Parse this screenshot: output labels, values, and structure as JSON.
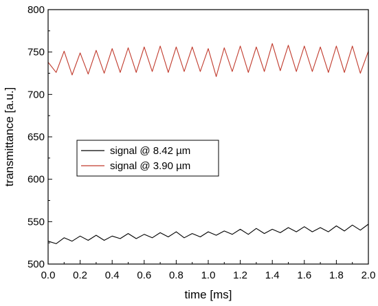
{
  "chart_data": {
    "type": "line",
    "xlabel": "time [ms]",
    "ylabel": "transmittance [a.u.]",
    "xlim": [
      0.0,
      2.0
    ],
    "ylim": [
      500,
      800
    ],
    "x_ticks": [
      "0.0",
      "0.2",
      "0.4",
      "0.6",
      "0.8",
      "1.0",
      "1.2",
      "1.4",
      "1.6",
      "1.8",
      "2.0"
    ],
    "y_ticks": [
      "500",
      "550",
      "600",
      "650",
      "700",
      "750",
      "800"
    ],
    "legend_position": "middle-left",
    "grid": false,
    "series": [
      {
        "name": "signal @ 8.42 µm",
        "color": "#000000",
        "x": [
          0.0,
          0.05,
          0.1,
          0.15,
          0.2,
          0.25,
          0.3,
          0.35,
          0.4,
          0.45,
          0.5,
          0.55,
          0.6,
          0.65,
          0.7,
          0.75,
          0.8,
          0.85,
          0.9,
          0.95,
          1.0,
          1.05,
          1.1,
          1.15,
          1.2,
          1.25,
          1.3,
          1.35,
          1.4,
          1.45,
          1.5,
          1.55,
          1.6,
          1.65,
          1.7,
          1.75,
          1.8,
          1.85,
          1.9,
          1.95,
          2.0
        ],
        "y": [
          527,
          524,
          531,
          527,
          533,
          528,
          534,
          528,
          533,
          530,
          536,
          530,
          535,
          531,
          537,
          532,
          538,
          531,
          536,
          532,
          538,
          534,
          539,
          535,
          541,
          535,
          542,
          536,
          541,
          537,
          543,
          538,
          544,
          538,
          543,
          538,
          545,
          539,
          546,
          540,
          547
        ]
      },
      {
        "name": "signal @ 3.90 µm",
        "color": "#c0392b",
        "x": [
          0.0,
          0.05,
          0.1,
          0.15,
          0.2,
          0.25,
          0.3,
          0.35,
          0.4,
          0.45,
          0.5,
          0.55,
          0.6,
          0.65,
          0.7,
          0.75,
          0.8,
          0.85,
          0.9,
          0.95,
          1.0,
          1.05,
          1.1,
          1.15,
          1.2,
          1.25,
          1.3,
          1.35,
          1.4,
          1.45,
          1.5,
          1.55,
          1.6,
          1.65,
          1.7,
          1.75,
          1.8,
          1.85,
          1.9,
          1.95,
          2.0
        ],
        "y": [
          738,
          726,
          751,
          723,
          749,
          724,
          752,
          725,
          754,
          726,
          755,
          726,
          756,
          727,
          757,
          726,
          756,
          727,
          756,
          727,
          754,
          721,
          755,
          727,
          757,
          726,
          756,
          727,
          760,
          728,
          758,
          727,
          757,
          727,
          756,
          726,
          757,
          726,
          757,
          725,
          751
        ]
      }
    ]
  }
}
